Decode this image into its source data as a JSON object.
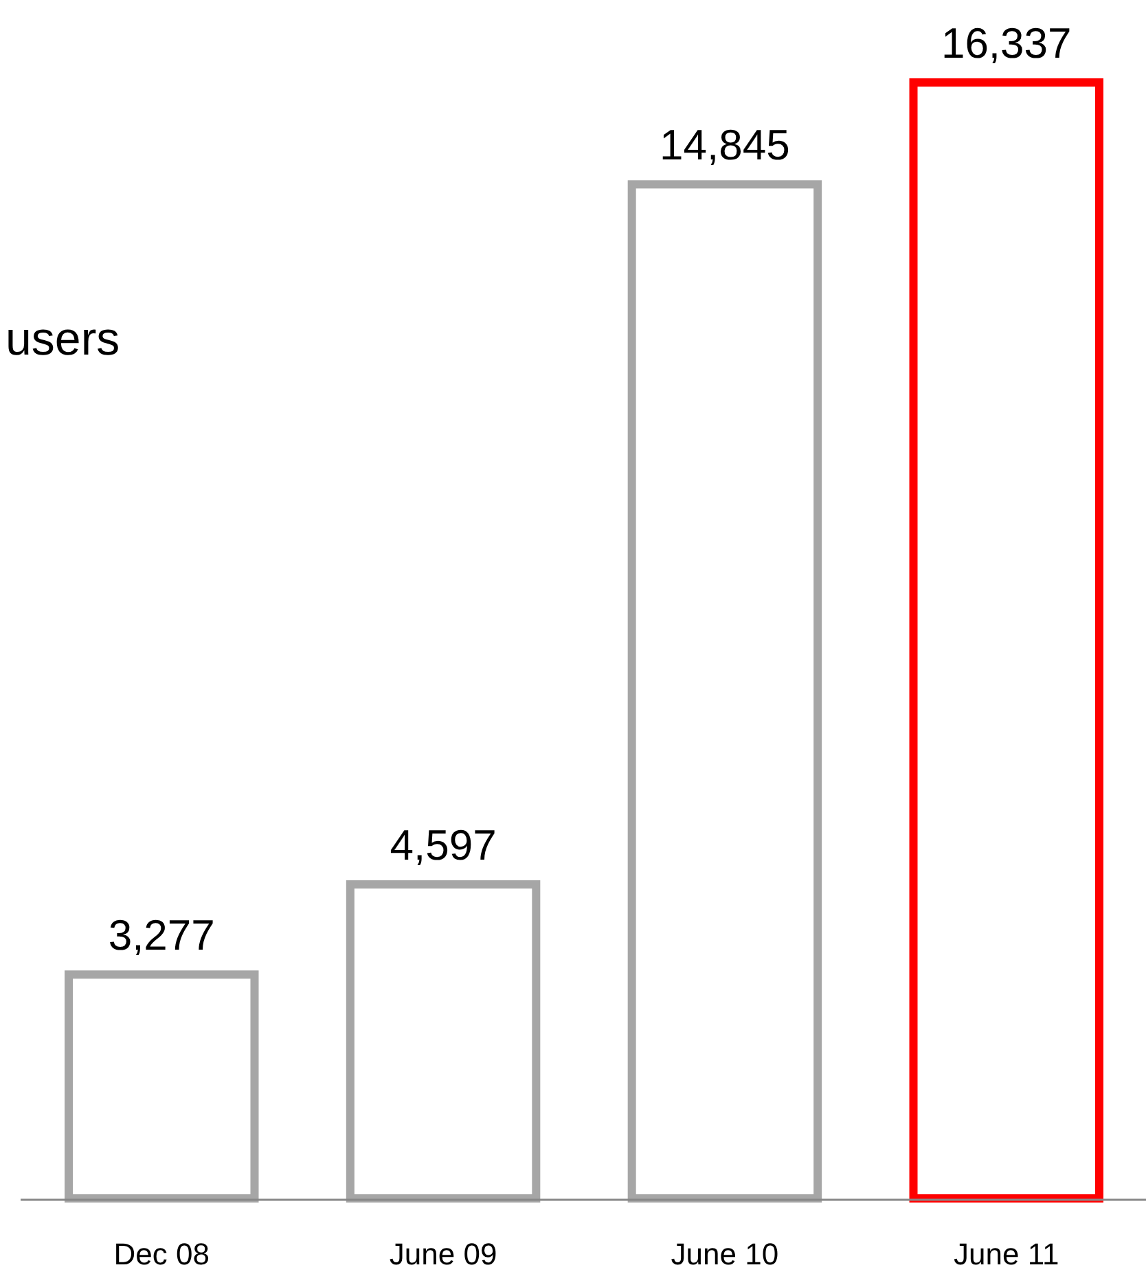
{
  "chart_data": {
    "type": "bar",
    "categories": [
      "Dec 08",
      "June 09",
      "June 10",
      "June 11"
    ],
    "values": [
      3277,
      4597,
      14845,
      16337
    ],
    "colors": [
      "#a6a6a6",
      "#a6a6a6",
      "#a6a6a6",
      "#ff0000"
    ],
    "value_labels": [
      "3,277",
      "4,597",
      "14,845",
      "16,337"
    ],
    "annotations": [
      "users"
    ]
  }
}
